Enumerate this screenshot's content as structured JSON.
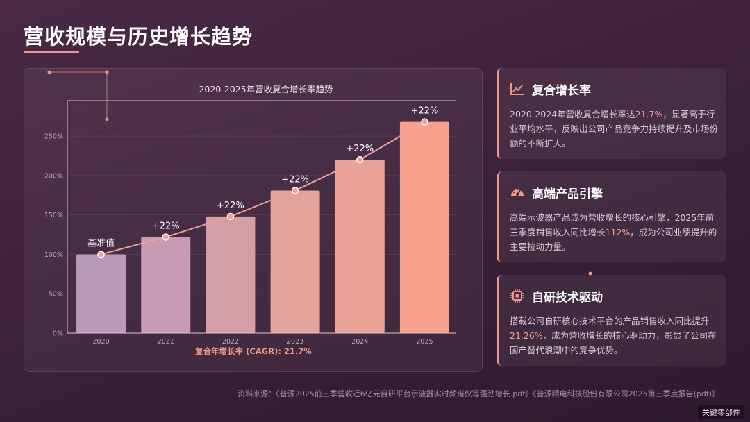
{
  "page": {
    "title": "营收规模与历史增长趋势",
    "accent_color": "#f0968a"
  },
  "chart_data": {
    "type": "bar",
    "title": "2020-2025年营收复合增长率趋势",
    "categories": [
      "2020",
      "2021",
      "2022",
      "2023",
      "2024",
      "2025"
    ],
    "values": [
      100,
      122,
      148,
      181,
      220,
      268
    ],
    "bar_labels": [
      "基准值",
      "+22%",
      "+22%",
      "+22%",
      "+22%",
      "+22%"
    ],
    "y_ticks": [
      "0%",
      "50%",
      "100%",
      "150%",
      "200%",
      "250%"
    ],
    "ylim": [
      0,
      295
    ],
    "xlabel": "复合年增长率 (CAGR): 21.7%",
    "ylabel": "",
    "grid": true,
    "overlay_line": true,
    "bar_colors": [
      "#b99ab8",
      "#c89bb2",
      "#d49ea7",
      "#e3a49b",
      "#eba397",
      "#f7a18e"
    ],
    "line_color": "#f5a094"
  },
  "cards": [
    {
      "icon": "line-chart-icon",
      "title": "复合增长率",
      "text_before": "2020-2024年营收复合增长率达",
      "highlight": "21.7%",
      "text_after": "，显著高于行业平均水平，反映出公司产品竞争力持续提升及市场份额的不断扩大。"
    },
    {
      "icon": "gauge-icon",
      "title": "高端产品引擎",
      "text_before": "高端示波器产品成为营收增长的核心引擎，2025年前三季度销售收入同比增长",
      "highlight": "112%",
      "text_after": "，成为公司业绩提升的主要拉动力量。"
    },
    {
      "icon": "chip-icon",
      "title": "自研技术驱动",
      "text_before": "搭载公司自研核心技术平台的产品销售收入同比提升",
      "highlight": "21.26%",
      "text_after": "，成为营收增长的核心驱动力，彰显了公司在国产替代浪潮中的竞争优势。"
    }
  ],
  "footer": {
    "source": "资料来源：《普源2025前三季营收近6亿元自研平台示波器实时频谱仪等强劲增长.pdf》《普源精电科技股份有限公司2025第三季度报告(pdf)》",
    "watermark": "关键零部件"
  }
}
